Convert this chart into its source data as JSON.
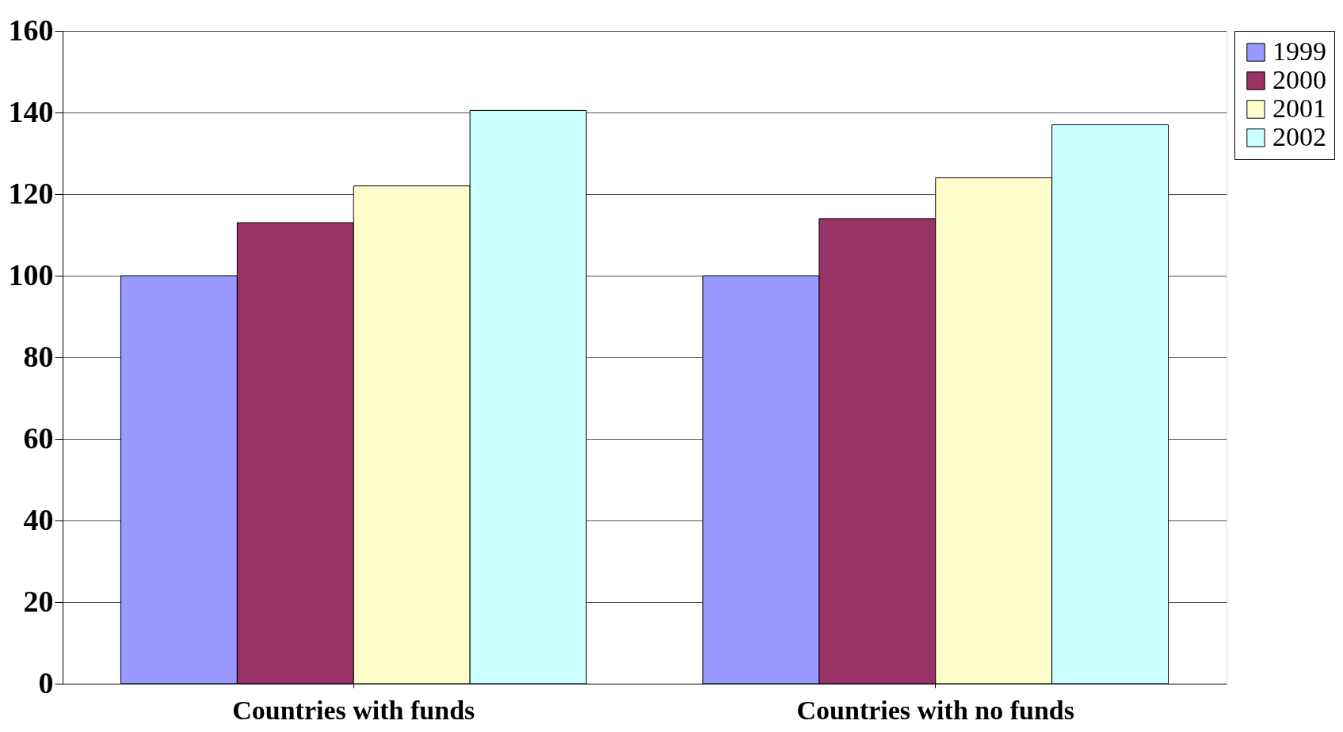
{
  "chart_data": {
    "type": "bar",
    "categories": [
      "Countries with funds",
      "Countries with no funds"
    ],
    "series": [
      {
        "name": "1999",
        "color": "#9999ff",
        "values": [
          100,
          100
        ]
      },
      {
        "name": "2000",
        "color": "#993366",
        "values": [
          113,
          114
        ]
      },
      {
        "name": "2001",
        "color": "#ffffcc",
        "values": [
          122,
          124
        ]
      },
      {
        "name": "2002",
        "color": "#ccffff",
        "values": [
          140.5,
          137
        ]
      }
    ],
    "ylim": [
      0,
      160
    ],
    "yticks": [
      0,
      20,
      40,
      60,
      80,
      100,
      120,
      140,
      160
    ],
    "grid": "y",
    "legend": "top right"
  }
}
